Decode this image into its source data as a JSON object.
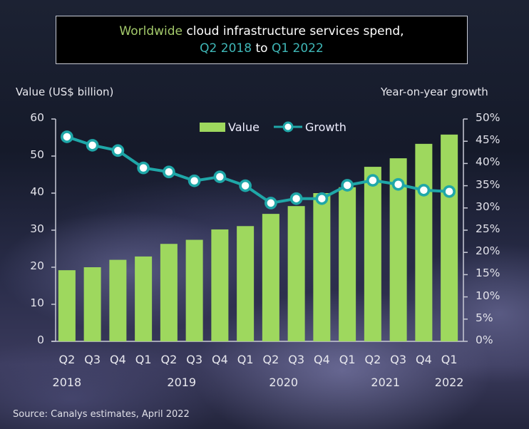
{
  "title": {
    "part1": "Worldwide",
    "part2": "cloud infrastructure services spend,",
    "part3": "Q2 2018",
    "part4": "to",
    "part5": "Q1 2022"
  },
  "source": "Source: Canalys estimates, April 2022",
  "colors": {
    "bar": "#9ed85e",
    "line": "#1fa7a8",
    "marker_fill": "#ffffff",
    "title_green": "#a3c96a",
    "title_teal": "#3fb7b7"
  },
  "chart_data": {
    "type": "bar",
    "title": "Worldwide cloud infrastructure services spend, Q2 2018 to Q1 2022",
    "ylabel": "Value (US$ billion)",
    "y2label": "Year-on-year growth",
    "categories": [
      "Q2",
      "Q3",
      "Q4",
      "Q1",
      "Q2",
      "Q3",
      "Q4",
      "Q1",
      "Q2",
      "Q3",
      "Q4",
      "Q1",
      "Q2",
      "Q3",
      "Q4",
      "Q1"
    ],
    "years": [
      {
        "label": "2018",
        "span": [
          0,
          0
        ]
      },
      {
        "label": "2019",
        "span": [
          3,
          6
        ]
      },
      {
        "label": "2020",
        "span": [
          7,
          10
        ]
      },
      {
        "label": "2021",
        "span": [
          11,
          14
        ]
      },
      {
        "label": "2022",
        "span": [
          15,
          15
        ]
      }
    ],
    "ylim": [
      0,
      60
    ],
    "yticks": [
      0,
      10,
      20,
      30,
      40,
      50,
      60
    ],
    "y2lim": [
      0,
      50
    ],
    "y2ticks": [
      "0%",
      "5%",
      "10%",
      "15%",
      "20%",
      "25%",
      "30%",
      "35%",
      "40%",
      "45%",
      "50%"
    ],
    "legend": [
      "Value",
      "Growth"
    ],
    "legend_position": "top-center",
    "grid": false,
    "series": [
      {
        "name": "Value",
        "type": "bar",
        "axis": "left",
        "values": [
          19.2,
          20.0,
          22.0,
          22.9,
          26.3,
          27.4,
          30.2,
          31.1,
          34.4,
          36.5,
          40.0,
          41.6,
          47.1,
          49.4,
          53.3,
          55.8
        ]
      },
      {
        "name": "Growth",
        "type": "line",
        "axis": "right",
        "unit": "%",
        "values": [
          46.0,
          44.1,
          42.9,
          39.0,
          38.1,
          36.1,
          37.0,
          35.0,
          31.1,
          32.1,
          32.1,
          35.1,
          36.2,
          35.3,
          34.0,
          33.7
        ]
      }
    ]
  }
}
